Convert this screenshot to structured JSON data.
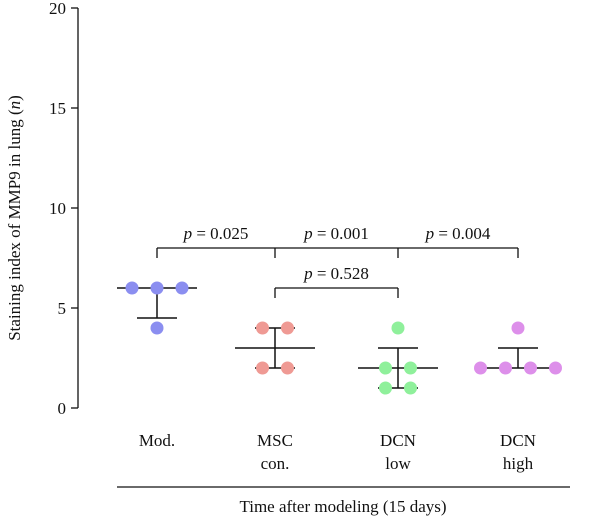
{
  "chart_data": {
    "type": "scatter",
    "ylabel_prefix": "Staining index of MMP9 in lung (",
    "ylabel_italic": "n",
    "ylabel_suffix": ")",
    "xlabel": "Time after modeling (15 days)",
    "ylim": [
      0,
      20
    ],
    "yticks": [
      0,
      5,
      10,
      15,
      20
    ],
    "categories": [
      {
        "lines": [
          "Mod."
        ]
      },
      {
        "lines": [
          "MSC",
          "con."
        ]
      },
      {
        "lines": [
          "DCN",
          "low"
        ]
      },
      {
        "lines": [
          "DCN",
          "high"
        ]
      }
    ],
    "series": [
      {
        "points": [
          4,
          6,
          6,
          6
        ],
        "mean": 6,
        "err_low": 4.5,
        "err_high": 6,
        "color": "#8b8ef0"
      },
      {
        "points": [
          2,
          2,
          4,
          4
        ],
        "mean": 3,
        "err_low": 2,
        "err_high": 4,
        "color": "#ef9a94"
      },
      {
        "points": [
          1,
          1,
          2,
          2,
          4
        ],
        "mean": 2,
        "err_low": 1,
        "err_high": 3,
        "color": "#8ff09b"
      },
      {
        "points": [
          2,
          2,
          2,
          2,
          4
        ],
        "mean": 2,
        "err_low": 2,
        "err_high": 3,
        "color": "#dd8fea"
      }
    ],
    "annotations": [
      {
        "from": 0,
        "to": [
          1,
          2,
          3
        ],
        "y": 8,
        "p_values": [
          "0.025",
          "0.001",
          "0.004"
        ]
      },
      {
        "from": 1,
        "to": [
          2
        ],
        "y": 6,
        "p_values": [
          "0.528"
        ]
      }
    ],
    "p_symbol": "p",
    "p_eq": " = "
  }
}
